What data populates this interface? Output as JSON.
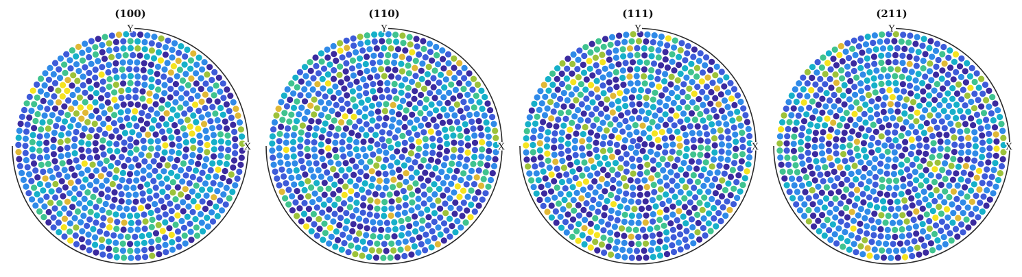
{
  "figure": {
    "panels": [
      {
        "title": "(100)",
        "x_axis_label": "X",
        "y_axis_label": "Y",
        "seed": 11,
        "hot_spots": [
          [
            0.55,
            0.1
          ],
          [
            0.3,
            -0.4
          ],
          [
            -0.6,
            -0.7
          ]
        ]
      },
      {
        "title": "(110)",
        "x_axis_label": "X",
        "y_axis_label": "Y",
        "seed": 23,
        "hot_spots": [
          [
            -0.2,
            0.2
          ],
          [
            -0.8,
            -0.1
          ],
          [
            0.6,
            -0.3
          ]
        ]
      },
      {
        "title": "(111)",
        "x_axis_label": "X",
        "y_axis_label": "Y",
        "seed": 37,
        "hot_spots": [
          [
            0.5,
            0.5
          ],
          [
            -0.4,
            -0.7
          ],
          [
            0.1,
            0.2
          ]
        ]
      },
      {
        "title": "(211)",
        "x_axis_label": "X",
        "y_axis_label": "Y",
        "seed": 53,
        "hot_spots": [
          [
            0.0,
            0.0
          ],
          [
            -0.7,
            0.3
          ],
          [
            0.4,
            -0.6
          ]
        ]
      }
    ],
    "colormap": [
      "#3b2a9f",
      "#3d5bd9",
      "#2f8ae8",
      "#16b0c9",
      "#3fc38f",
      "#9cc23a",
      "#e0b836",
      "#f5e320"
    ]
  }
}
